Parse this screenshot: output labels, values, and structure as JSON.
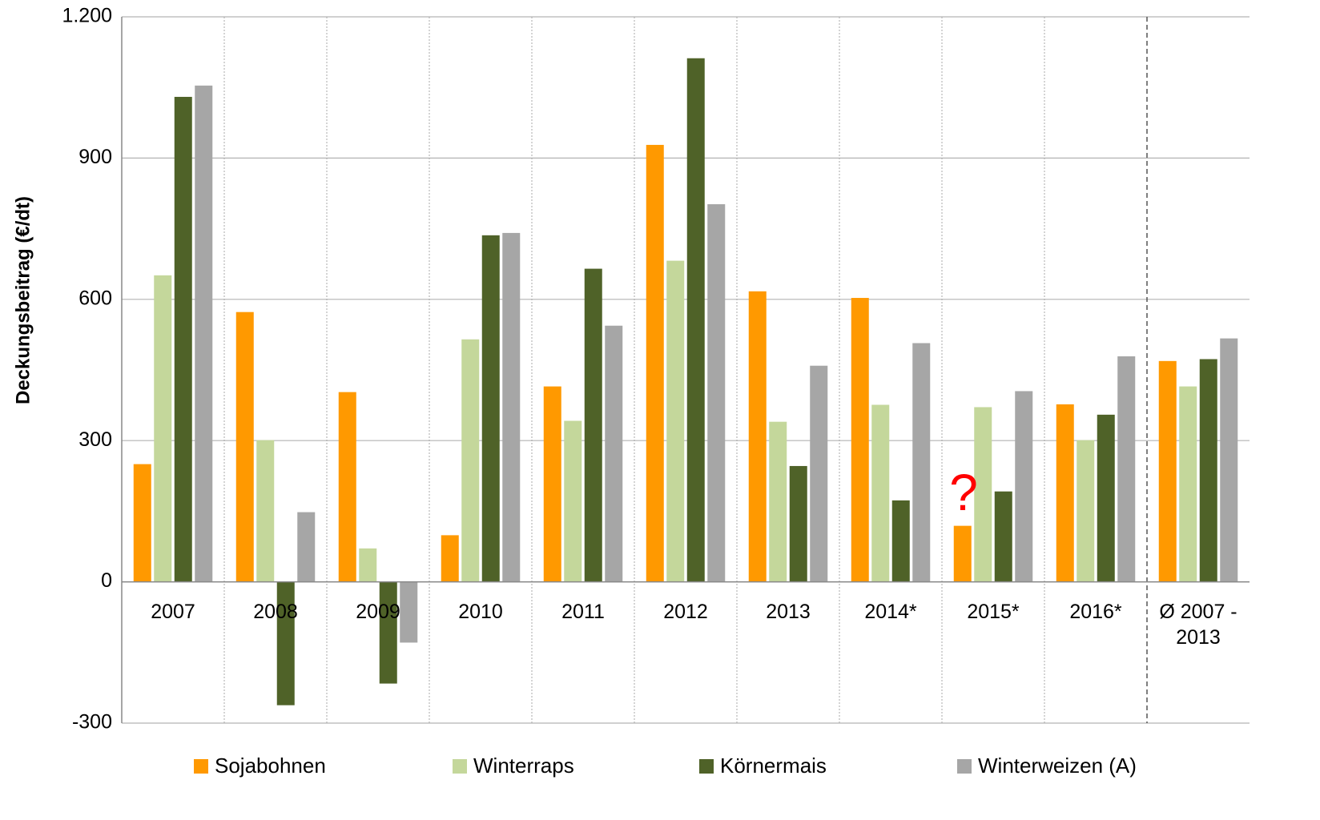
{
  "chart_data": {
    "type": "bar",
    "y_label": "Deckungsbeitrag (€/dt)",
    "categories": [
      "2007",
      "2008",
      "2009",
      "2010",
      "2011",
      "2012",
      "2013",
      "2014*",
      "2015*",
      "2016*",
      "Ø 2007 - 2013"
    ],
    "series": [
      {
        "name": "Sojabohnen",
        "color": "#ff9900",
        "values": [
          250,
          573,
          403,
          99,
          415,
          928,
          617,
          603,
          119,
          377,
          469
        ]
      },
      {
        "name": "Winterraps",
        "color": "#c4d79b",
        "values": [
          651,
          301,
          71,
          515,
          342,
          682,
          340,
          376,
          371,
          301,
          415
        ]
      },
      {
        "name": "Körnermais",
        "color": "#4f6228",
        "values": [
          1030,
          -262,
          -216,
          736,
          665,
          1112,
          246,
          173,
          192,
          355,
          473
        ]
      },
      {
        "name": "Winterweizen (A)",
        "color": "#a6a6a6",
        "values": [
          1054,
          148,
          -129,
          741,
          544,
          802,
          459,
          507,
          405,
          479,
          517
        ]
      }
    ],
    "ylim": [
      -300,
      1200
    ],
    "yticks": [
      -300,
      0,
      300,
      600,
      900,
      {
        "value": 1200,
        "label": "1.200"
      }
    ],
    "grid": true,
    "legend": "bottom",
    "annotations": [
      {
        "text": "?",
        "color": "#ff0000"
      }
    ]
  }
}
